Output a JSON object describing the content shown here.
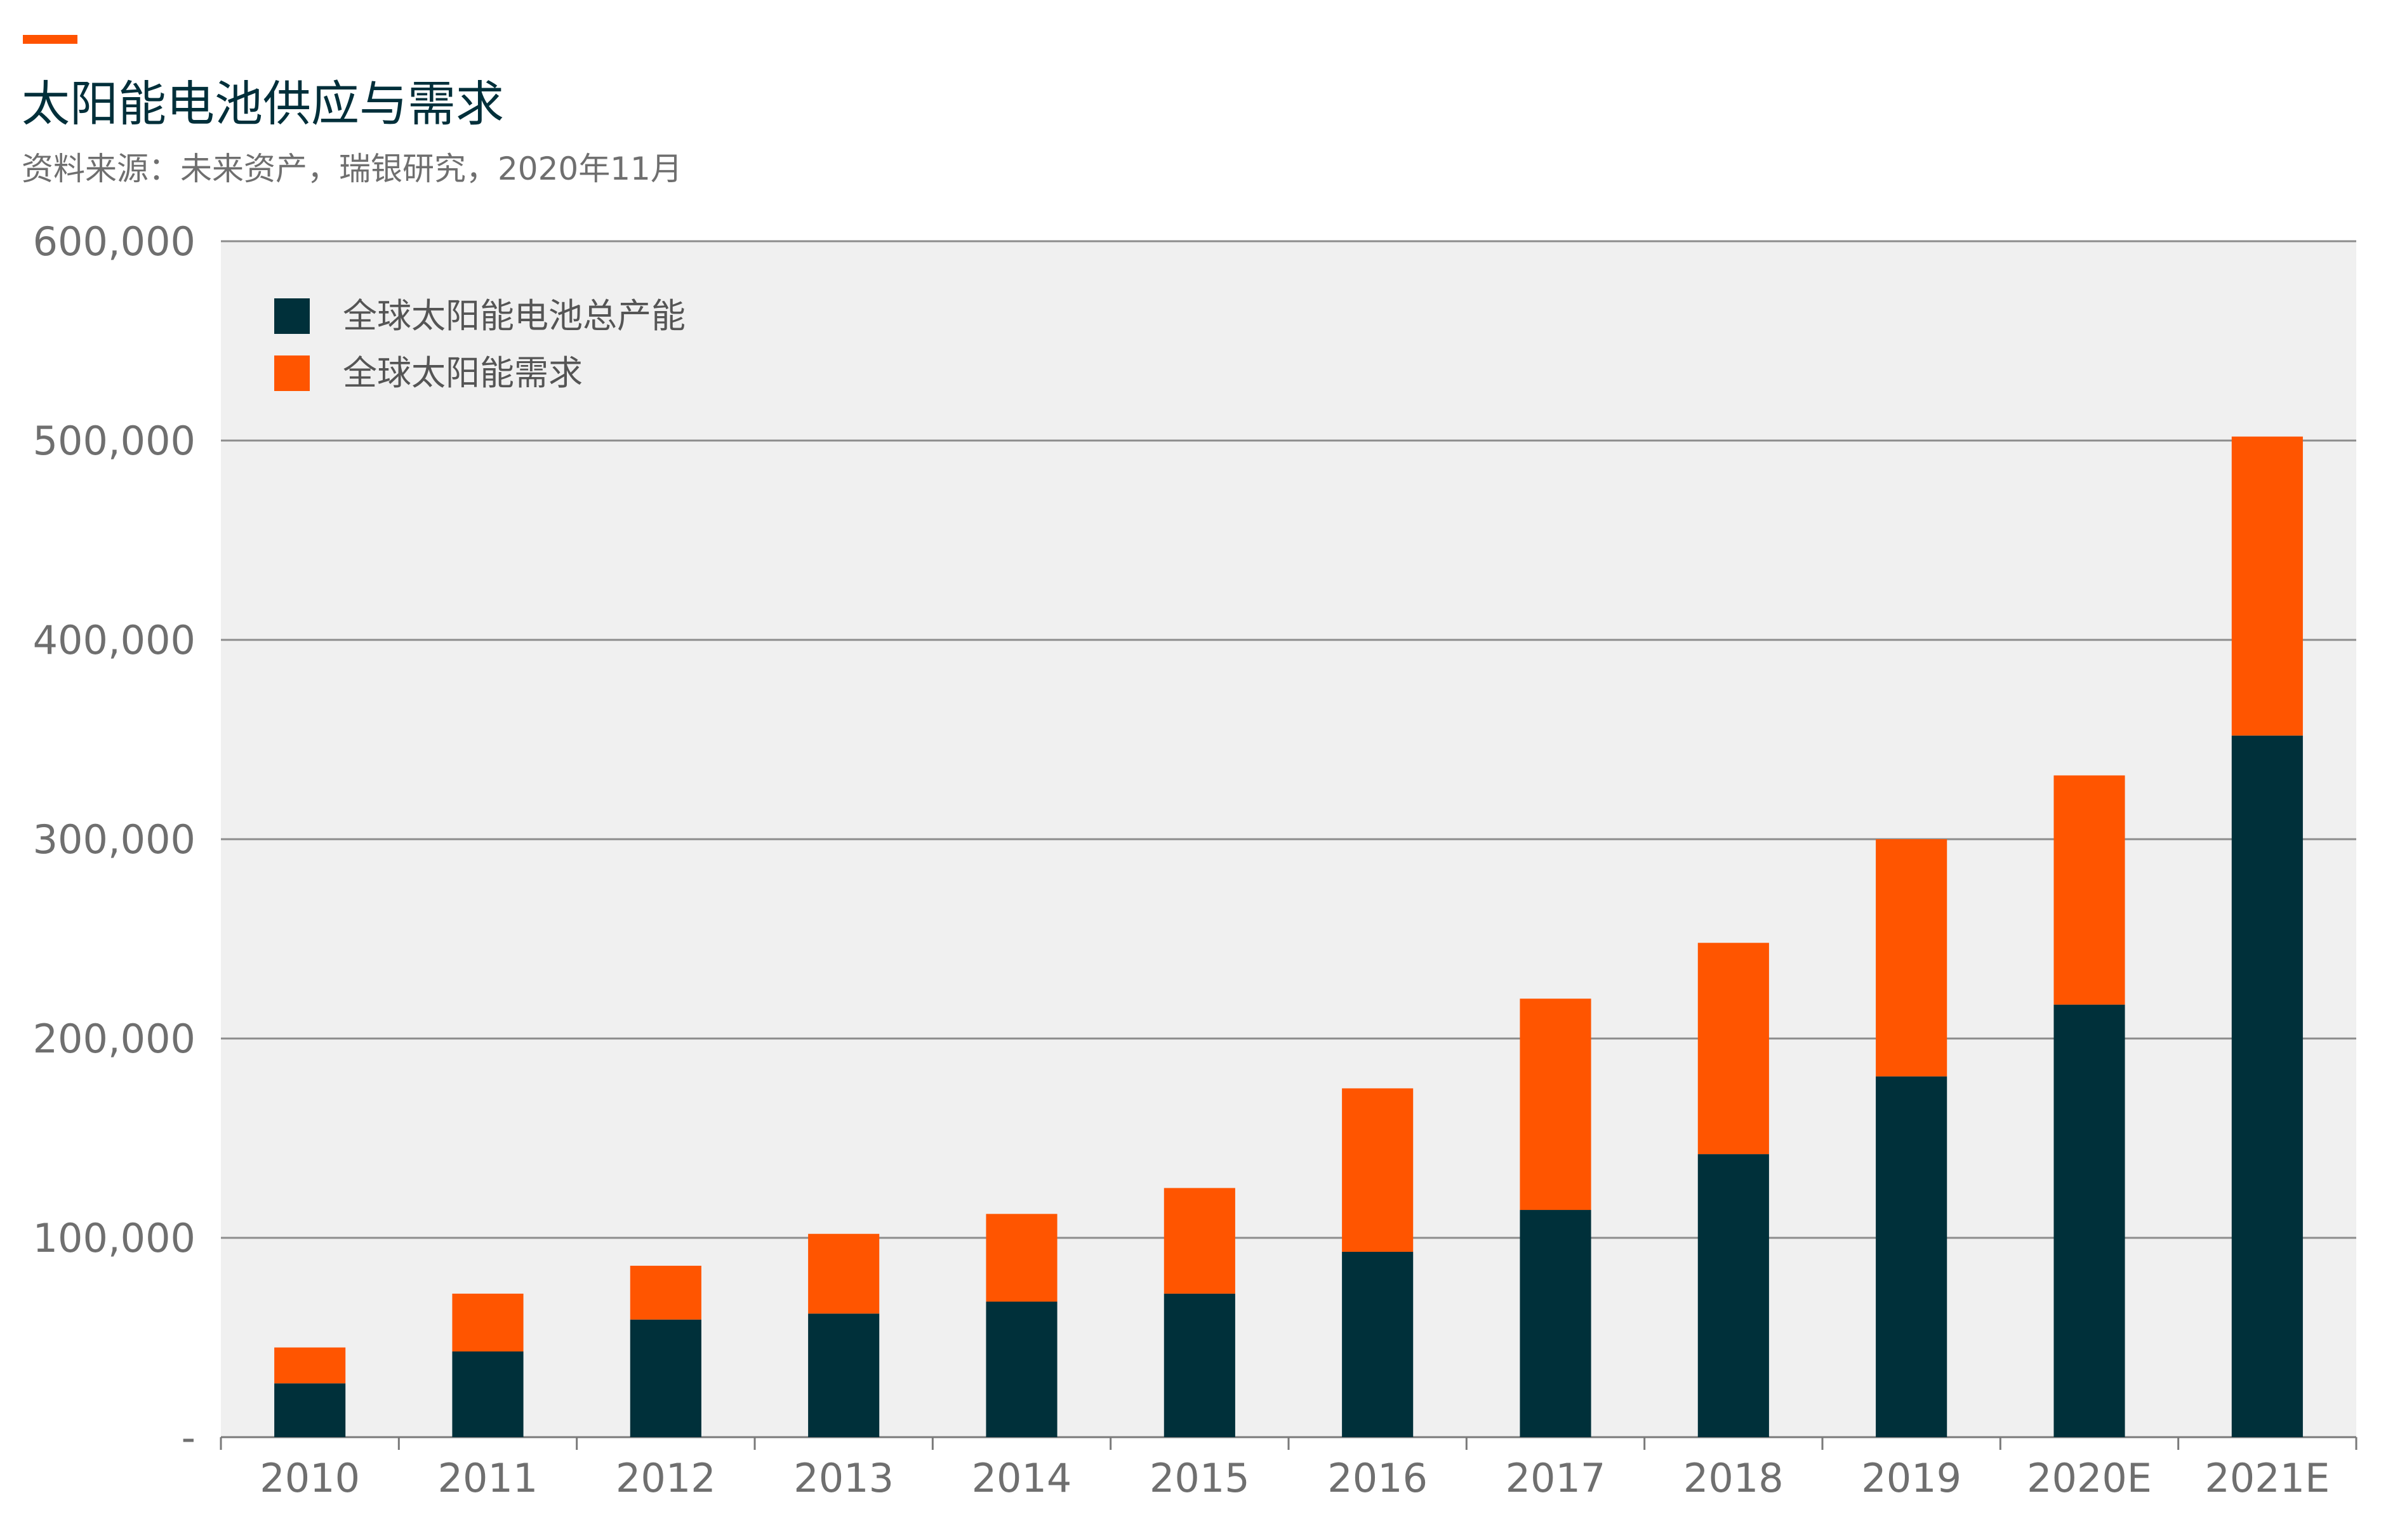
{
  "header": {
    "title": "太阳能电池供应与需求",
    "source": "资料来源：未来资产，瑞银研究，2020年11月"
  },
  "colors": {
    "accent": "#ff5200",
    "capacity": "#00303a",
    "demand": "#ff5500",
    "plot_bg": "#f0f0f0",
    "grid": "#8c8c8c",
    "axis_text": "#6f6f6f",
    "title": "#002f3a"
  },
  "chart_data": {
    "type": "bar",
    "stacked": true,
    "title": "太阳能电池供应与需求",
    "categories": [
      "2010",
      "2011",
      "2012",
      "2013",
      "2014",
      "2015",
      "2016",
      "2017",
      "2018",
      "2019",
      "2020E",
      "2021E"
    ],
    "series": [
      {
        "name": "全球太阳能电池总产能",
        "values": [
          27000,
          43000,
          59000,
          62000,
          68000,
          72000,
          93000,
          114000,
          142000,
          181000,
          217000,
          352000
        ]
      },
      {
        "name": "全球太阳能需求",
        "values": [
          18000,
          29000,
          27000,
          40000,
          44000,
          53000,
          82000,
          106000,
          106000,
          119000,
          115000,
          150000
        ]
      }
    ],
    "ylim": [
      0,
      600000
    ],
    "yticks": [
      0,
      100000,
      200000,
      300000,
      400000,
      500000,
      600000
    ],
    "ytick_labels": [
      "-",
      "100,000",
      "200,000",
      "300,000",
      "400,000",
      "500,000",
      "600,000"
    ],
    "grid": true,
    "legend_position": "top-left"
  }
}
